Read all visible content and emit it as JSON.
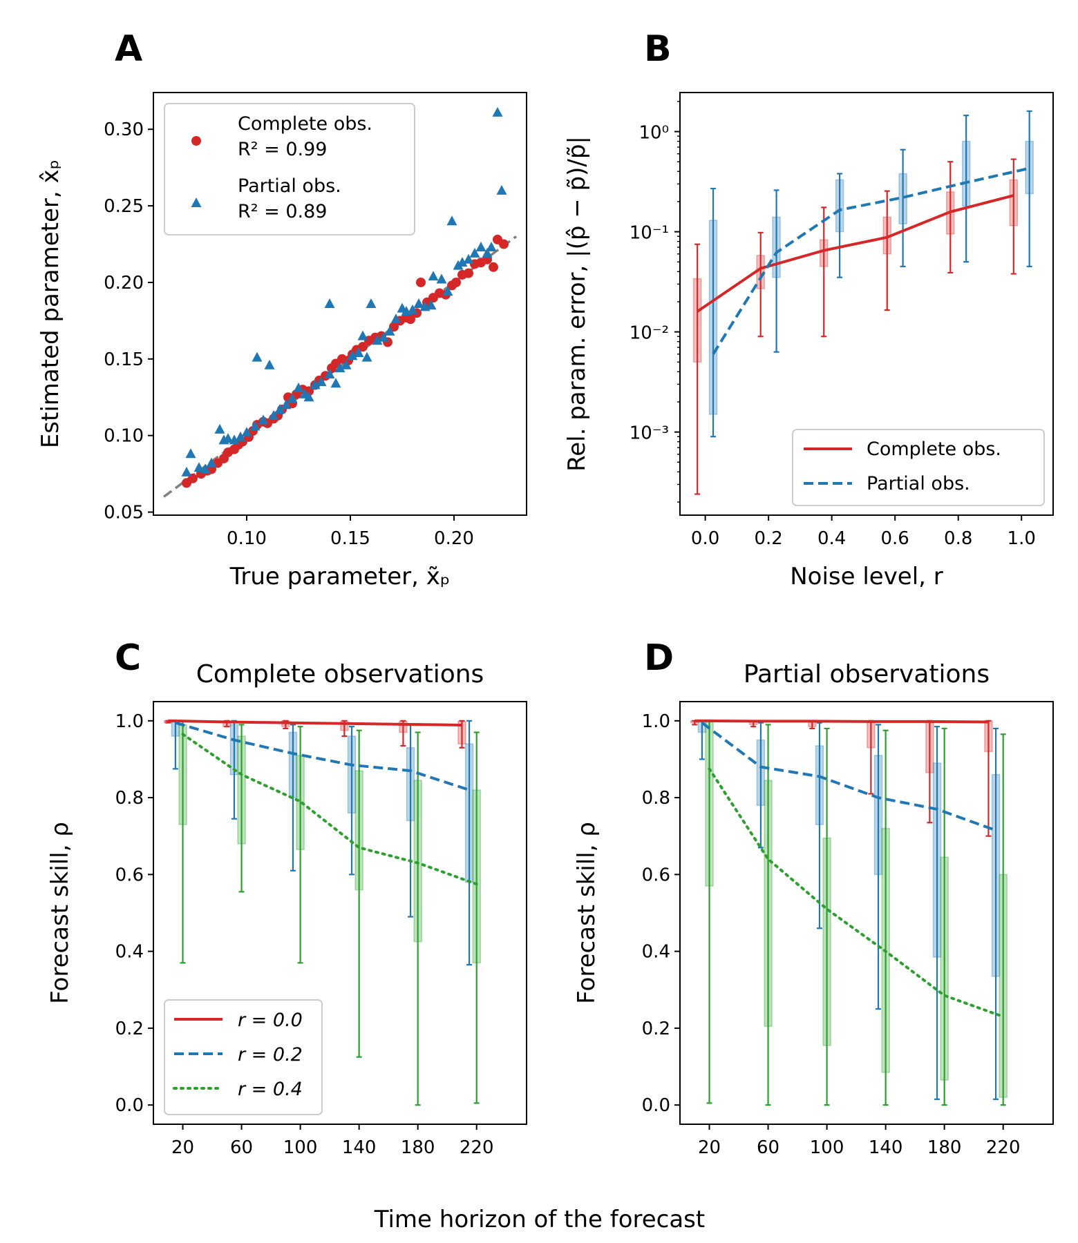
{
  "colors": {
    "red": "#d62728",
    "blue": "#1f77b4",
    "green": "#2ca02c",
    "gray": "#808080"
  },
  "shared_xlabel": "Time horizon of the forecast",
  "chart_data": [
    {
      "panel": "A",
      "type": "scatter",
      "title": "",
      "xlabel": "True parameter, x̃ₚ",
      "ylabel": "Estimated parameter, x̂ₚ",
      "xlim": [
        0.055,
        0.235
      ],
      "ylim": [
        0.048,
        0.324
      ],
      "xticks": [
        "0.10",
        "0.15",
        "0.20"
      ],
      "yticks": [
        "0.05",
        "0.10",
        "0.15",
        "0.20",
        "0.25",
        "0.30"
      ],
      "identity_line": [
        [
          0.06,
          0.06
        ],
        [
          0.23,
          0.23
        ]
      ],
      "legend_position": "upper-left",
      "series": [
        {
          "name": "Complete obs.",
          "r2_label": "R² = 0.99",
          "marker": "circle",
          "color": "red",
          "points": [
            [
              0.071,
              0.069
            ],
            [
              0.074,
              0.072
            ],
            [
              0.078,
              0.075
            ],
            [
              0.081,
              0.077
            ],
            [
              0.083,
              0.078
            ],
            [
              0.086,
              0.082
            ],
            [
              0.089,
              0.085
            ],
            [
              0.091,
              0.089
            ],
            [
              0.094,
              0.091
            ],
            [
              0.096,
              0.094
            ],
            [
              0.098,
              0.096
            ],
            [
              0.101,
              0.099
            ],
            [
              0.103,
              0.103
            ],
            [
              0.105,
              0.107
            ],
            [
              0.108,
              0.109
            ],
            [
              0.11,
              0.108
            ],
            [
              0.113,
              0.111
            ],
            [
              0.115,
              0.113
            ],
            [
              0.117,
              0.117
            ],
            [
              0.12,
              0.125
            ],
            [
              0.122,
              0.121
            ],
            [
              0.124,
              0.127
            ],
            [
              0.127,
              0.13
            ],
            [
              0.13,
              0.129
            ],
            [
              0.133,
              0.133
            ],
            [
              0.135,
              0.136
            ],
            [
              0.138,
              0.139
            ],
            [
              0.141,
              0.144
            ],
            [
              0.143,
              0.147
            ],
            [
              0.146,
              0.15
            ],
            [
              0.149,
              0.149
            ],
            [
              0.151,
              0.153
            ],
            [
              0.153,
              0.156
            ],
            [
              0.156,
              0.158
            ],
            [
              0.159,
              0.162
            ],
            [
              0.162,
              0.164
            ],
            [
              0.165,
              0.165
            ],
            [
              0.168,
              0.161
            ],
            [
              0.171,
              0.171
            ],
            [
              0.174,
              0.175
            ],
            [
              0.177,
              0.177
            ],
            [
              0.179,
              0.176
            ],
            [
              0.182,
              0.18
            ],
            [
              0.184,
              0.2
            ],
            [
              0.187,
              0.187
            ],
            [
              0.19,
              0.19
            ],
            [
              0.193,
              0.193
            ],
            [
              0.196,
              0.192
            ],
            [
              0.199,
              0.198
            ],
            [
              0.201,
              0.2
            ],
            [
              0.204,
              0.205
            ],
            [
              0.207,
              0.206
            ],
            [
              0.21,
              0.212
            ],
            [
              0.213,
              0.213
            ],
            [
              0.216,
              0.215
            ],
            [
              0.219,
              0.21
            ],
            [
              0.221,
              0.228
            ],
            [
              0.224,
              0.225
            ]
          ]
        },
        {
          "name": "Partial obs.",
          "r2_label": "R² = 0.89",
          "marker": "triangle",
          "color": "blue",
          "points": [
            [
              0.071,
              0.076
            ],
            [
              0.073,
              0.088
            ],
            [
              0.077,
              0.079
            ],
            [
              0.08,
              0.078
            ],
            [
              0.083,
              0.082
            ],
            [
              0.087,
              0.104
            ],
            [
              0.089,
              0.097
            ],
            [
              0.091,
              0.098
            ],
            [
              0.094,
              0.097
            ],
            [
              0.097,
              0.099
            ],
            [
              0.1,
              0.102
            ],
            [
              0.104,
              0.106
            ],
            [
              0.105,
              0.151
            ],
            [
              0.108,
              0.11
            ],
            [
              0.111,
              0.146
            ],
            [
              0.113,
              0.113
            ],
            [
              0.116,
              0.117
            ],
            [
              0.119,
              0.12
            ],
            [
              0.122,
              0.124
            ],
            [
              0.125,
              0.131
            ],
            [
              0.128,
              0.127
            ],
            [
              0.13,
              0.125
            ],
            [
              0.133,
              0.133
            ],
            [
              0.136,
              0.135
            ],
            [
              0.14,
              0.186
            ],
            [
              0.14,
              0.14
            ],
            [
              0.143,
              0.134
            ],
            [
              0.145,
              0.144
            ],
            [
              0.148,
              0.146
            ],
            [
              0.151,
              0.152
            ],
            [
              0.154,
              0.154
            ],
            [
              0.156,
              0.165
            ],
            [
              0.158,
              0.151
            ],
            [
              0.16,
              0.186
            ],
            [
              0.163,
              0.162
            ],
            [
              0.166,
              0.164
            ],
            [
              0.169,
              0.168
            ],
            [
              0.172,
              0.176
            ],
            [
              0.175,
              0.183
            ],
            [
              0.177,
              0.181
            ],
            [
              0.18,
              0.182
            ],
            [
              0.183,
              0.186
            ],
            [
              0.186,
              0.184
            ],
            [
              0.189,
              0.185
            ],
            [
              0.19,
              0.204
            ],
            [
              0.194,
              0.202
            ],
            [
              0.197,
              0.194
            ],
            [
              0.199,
              0.24
            ],
            [
              0.202,
              0.211
            ],
            [
              0.204,
              0.213
            ],
            [
              0.207,
              0.215
            ],
            [
              0.21,
              0.219
            ],
            [
              0.213,
              0.223
            ],
            [
              0.216,
              0.219
            ],
            [
              0.218,
              0.223
            ],
            [
              0.221,
              0.311
            ],
            [
              0.223,
              0.26
            ]
          ]
        }
      ]
    },
    {
      "panel": "B",
      "type": "line",
      "title": "",
      "xlabel": "Noise level, r",
      "ylabel": "Rel. param. error, |(p̂ − p̃)/p̃|",
      "yscale": "log",
      "xlim": [
        -0.08,
        1.1
      ],
      "ylim_log10": [
        -3.83,
        0.39
      ],
      "xticks": [
        "0.0",
        "0.2",
        "0.4",
        "0.6",
        "0.8",
        "1.0"
      ],
      "yticks": [
        "10⁻³",
        "10⁻²",
        "10⁻¹",
        "10⁰"
      ],
      "legend_position": "lower-right",
      "series": [
        {
          "name": "Complete obs.",
          "color": "red",
          "line": "solid",
          "offset": -0.025,
          "x": [
            0.0,
            0.2,
            0.4,
            0.6,
            0.8,
            1.0
          ],
          "median": [
            0.016,
            0.043,
            0.065,
            0.088,
            0.158,
            0.23
          ],
          "q1": [
            0.005,
            0.027,
            0.045,
            0.06,
            0.095,
            0.115
          ],
          "q3": [
            0.034,
            0.058,
            0.083,
            0.14,
            0.25,
            0.33
          ],
          "min": [
            0.00024,
            0.009,
            0.009,
            0.0165,
            0.039,
            0.038
          ],
          "max": [
            0.075,
            0.098,
            0.175,
            0.255,
            0.5,
            0.53
          ]
        },
        {
          "name": "Partial obs.",
          "color": "blue",
          "line": "dashed",
          "offset": 0.025,
          "x": [
            0.0,
            0.2,
            0.4,
            0.6,
            0.8,
            1.0
          ],
          "median": [
            0.006,
            0.062,
            0.165,
            0.22,
            0.31,
            0.43
          ],
          "q1": [
            0.0015,
            0.035,
            0.1,
            0.12,
            0.18,
            0.24
          ],
          "q3": [
            0.13,
            0.14,
            0.33,
            0.38,
            0.8,
            0.8
          ],
          "min": [
            0.0009,
            0.0063,
            0.035,
            0.045,
            0.05,
            0.045
          ],
          "max": [
            0.27,
            0.26,
            0.38,
            0.66,
            1.45,
            1.6
          ]
        }
      ]
    },
    {
      "panel": "C",
      "type": "line",
      "title": "Complete observations",
      "xlabel": "",
      "ylabel": "Forecast skill, ρ",
      "xlim": [
        0,
        254
      ],
      "ylim": [
        -0.05,
        1.05
      ],
      "xticks": [
        20,
        60,
        100,
        140,
        180,
        220
      ],
      "yticks": [
        "0.0",
        "0.2",
        "0.4",
        "0.6",
        "0.8",
        "1.0"
      ],
      "legend_position": "lower-left",
      "series": [
        {
          "name": "r = 0.0",
          "color": "red",
          "line": "solid",
          "x": [
            10,
            50,
            90,
            130,
            170,
            210
          ],
          "median": [
            1.0,
            0.997,
            0.995,
            0.993,
            0.991,
            0.989
          ],
          "q1": [
            0.995,
            0.985,
            0.985,
            0.975,
            0.97,
            0.94
          ],
          "q3": [
            1.0,
            1.0,
            1.0,
            0.999,
            0.999,
            0.999
          ],
          "min": [
            0.995,
            0.985,
            0.98,
            0.96,
            0.935,
            0.93
          ],
          "max": [
            1.0,
            1.0,
            1.0,
            1.0,
            1.0,
            1.0
          ]
        },
        {
          "name": "r = 0.2",
          "color": "blue",
          "line": "dashed",
          "x": [
            15,
            55,
            95,
            135,
            175,
            215
          ],
          "median": [
            0.995,
            0.95,
            0.915,
            0.885,
            0.87,
            0.82
          ],
          "q1": [
            0.96,
            0.86,
            0.8,
            0.76,
            0.74,
            0.58
          ],
          "q3": [
            1.0,
            0.99,
            0.97,
            0.96,
            0.93,
            0.94
          ],
          "min": [
            0.875,
            0.745,
            0.61,
            0.6,
            0.49,
            0.365
          ],
          "max": [
            1.0,
            1.0,
            0.99,
            0.985,
            0.99,
            1.0
          ]
        },
        {
          "name": "r = 0.4",
          "color": "green",
          "line": "dotted",
          "x": [
            20,
            60,
            100,
            140,
            180,
            220
          ],
          "median": [
            0.965,
            0.86,
            0.79,
            0.67,
            0.63,
            0.575
          ],
          "q1": [
            0.73,
            0.68,
            0.665,
            0.56,
            0.425,
            0.37
          ],
          "q3": [
            0.99,
            0.96,
            0.91,
            0.87,
            0.845,
            0.82
          ],
          "min": [
            0.37,
            0.555,
            0.37,
            0.125,
            0.0,
            0.005
          ],
          "max": [
            1.0,
            0.99,
            0.985,
            0.975,
            0.97,
            0.97
          ]
        }
      ]
    },
    {
      "panel": "D",
      "type": "line",
      "title": "Partial observations",
      "xlabel": "",
      "ylabel": "Forecast skill, ρ",
      "xlim": [
        0,
        254
      ],
      "ylim": [
        -0.05,
        1.05
      ],
      "xticks": [
        20,
        60,
        100,
        140,
        180,
        220
      ],
      "yticks": [
        "0.0",
        "0.2",
        "0.4",
        "0.6",
        "0.8",
        "1.0"
      ],
      "legend_position": "",
      "series": [
        {
          "name": "r = 0.0",
          "color": "red",
          "line": "solid",
          "x": [
            10,
            50,
            90,
            130,
            170,
            210
          ],
          "median": [
            1.0,
            0.999,
            0.999,
            0.998,
            0.998,
            0.997
          ],
          "q1": [
            0.995,
            0.99,
            0.985,
            0.93,
            0.865,
            0.92
          ],
          "q3": [
            1.0,
            1.0,
            1.0,
            1.0,
            1.0,
            1.0
          ],
          "min": [
            0.99,
            0.985,
            0.98,
            0.81,
            0.735,
            0.7
          ],
          "max": [
            1.0,
            1.0,
            1.0,
            1.0,
            1.0,
            1.0
          ]
        },
        {
          "name": "r = 0.2",
          "color": "blue",
          "line": "dashed",
          "x": [
            15,
            55,
            95,
            135,
            175,
            215
          ],
          "median": [
            0.995,
            0.88,
            0.855,
            0.8,
            0.77,
            0.715
          ],
          "q1": [
            0.97,
            0.78,
            0.73,
            0.6,
            0.385,
            0.335
          ],
          "q3": [
            1.0,
            0.95,
            0.935,
            0.91,
            0.89,
            0.86
          ],
          "min": [
            0.9,
            0.67,
            0.46,
            0.25,
            0.015,
            0.015
          ],
          "max": [
            1.0,
            0.995,
            0.995,
            0.99,
            0.985,
            0.98
          ]
        },
        {
          "name": "r = 0.4",
          "color": "green",
          "line": "dotted",
          "x": [
            20,
            60,
            100,
            140,
            180,
            220
          ],
          "median": [
            0.875,
            0.64,
            0.51,
            0.4,
            0.285,
            0.23
          ],
          "q1": [
            0.57,
            0.205,
            0.155,
            0.085,
            0.065,
            0.02
          ],
          "q3": [
            1.0,
            0.845,
            0.695,
            0.72,
            0.645,
            0.6
          ],
          "min": [
            0.005,
            0.0,
            0.0,
            0.0,
            0.0,
            0.0
          ],
          "max": [
            1.0,
            0.99,
            0.98,
            0.975,
            0.98,
            0.965
          ]
        }
      ]
    }
  ]
}
